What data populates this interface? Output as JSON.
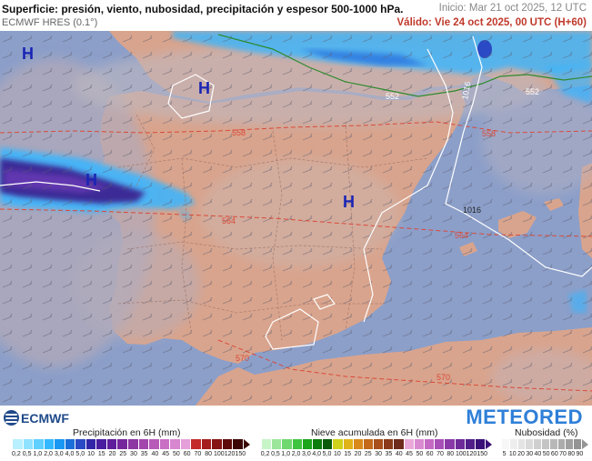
{
  "header": {
    "title": "Superficie: presión, viento, nubosidad, precipitación y espesor 500-1000 hPa.",
    "model": "ECMWF HRES (0.1°)",
    "init": "Inicio: Mar 21 oct 2025, 12 UTC",
    "valid": "Válido: Vie 24 oct 2025, 00 UTC (H+60)"
  },
  "map": {
    "high_pressure_labels": [
      "H",
      "H",
      "H",
      "H"
    ],
    "thickness_labels": [
      "552",
      "552",
      "558",
      "558",
      "564",
      "564",
      "570",
      "570"
    ],
    "isobar_labels": [
      "1016",
      "1016"
    ],
    "colors": {
      "sea": "#8c9fc9",
      "land": "#d9a48d",
      "cloud": "#b7b1bb",
      "thickness": "#d94a3a",
      "thickness_552": "#2e8a2e",
      "isobar": "#ffffff",
      "high_label": "#1a25b5",
      "precip_dark": "#3a1a8c",
      "precip_light": "#38b6ff"
    }
  },
  "footer": {
    "ecmwf_logo": "ECMWF",
    "meteored_logo": "METEORED",
    "precip_legend": {
      "title": "Precipitación en 6H (mm)",
      "ticks": [
        "0,2",
        "0,5",
        "1,0",
        "2,0",
        "3,0",
        "4,0",
        "5,0",
        "10",
        "15",
        "20",
        "25",
        "30",
        "35",
        "40",
        "45",
        "50",
        "60",
        "70",
        "80",
        "100",
        "120",
        "150"
      ],
      "colors": [
        "#b9f0ff",
        "#8fe3ff",
        "#5fd0ff",
        "#33b8ff",
        "#1a97f2",
        "#1a6fd9",
        "#2a49c4",
        "#3325a8",
        "#4a1da0",
        "#5f1d9c",
        "#76269c",
        "#8d36a3",
        "#a347ad",
        "#b85bb8",
        "#c96fc4",
        "#d886d0",
        "#e59fda",
        "#c42a2a",
        "#a51d1d",
        "#861414",
        "#5e0b0b",
        "#3a0606"
      ]
    },
    "snow_legend": {
      "title": "Nieve acumulada en 6H (mm)",
      "ticks": [
        "0,2",
        "0,5",
        "1,0",
        "2,0",
        "3,0",
        "4,0",
        "5,0",
        "10",
        "15",
        "20",
        "25",
        "30",
        "35",
        "40",
        "45",
        "50",
        "60",
        "70",
        "80",
        "100",
        "120",
        "150"
      ],
      "colors": [
        "#c8f5c8",
        "#9be69b",
        "#6fd86f",
        "#3fc43f",
        "#1aa51a",
        "#0c7c0c",
        "#0a5a0a",
        "#cfd11a",
        "#e0b31a",
        "#d98a1a",
        "#c46a1a",
        "#a84f1a",
        "#8a3a1a",
        "#6e2a1a",
        "#e8a8d8",
        "#d98ad0",
        "#c46ac4",
        "#a84fb8",
        "#8a3aa8",
        "#6e2a98",
        "#521d88",
        "#3a1078"
      ]
    },
    "cloud_legend": {
      "title": "Nubosidad (%)",
      "ticks": [
        "5",
        "10",
        "20",
        "30",
        "40",
        "50",
        "60",
        "70",
        "80",
        "90"
      ],
      "colors": [
        "#f7f7f7",
        "#eeeeee",
        "#e4e4e4",
        "#dadada",
        "#cfcfcf",
        "#c4c4c4",
        "#b8b8b8",
        "#acacac",
        "#a0a0a0",
        "#949494"
      ]
    }
  }
}
